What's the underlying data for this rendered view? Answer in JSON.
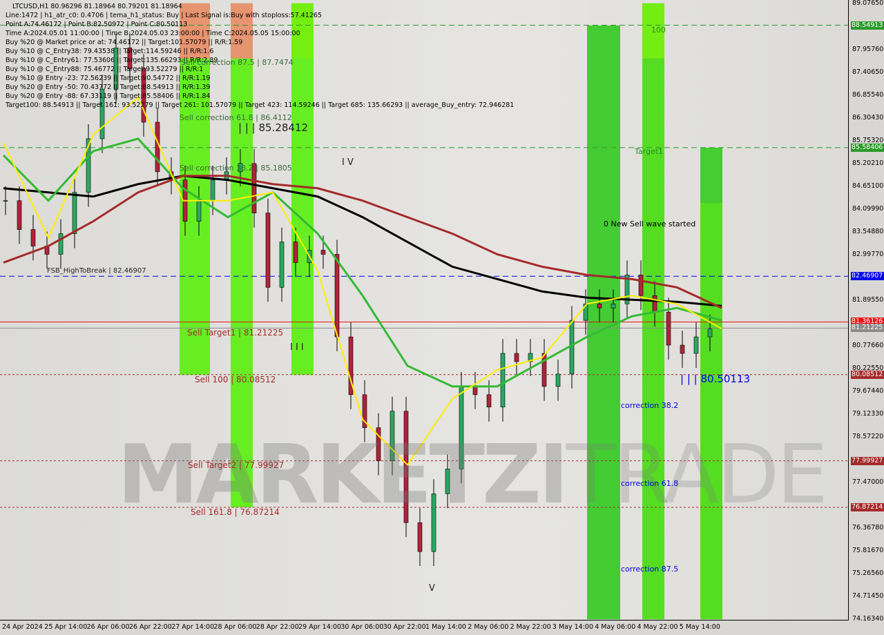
{
  "header": {
    "title": "LTCUSD,H1  80.96296 81.18964 80.79201 81.18964",
    "lines": [
      "Line:1472 | h1_atr_c0: 0.4706 | tema_h1_status: Buy | Last Signal is:Buy with stoploss:57.41265",
      "Point A:74.46172 | Point B:82.50972 | Point C:80.50113",
      "Time A:2024.05.01 11:00:00 | Time B:2024.05.03 23:00:00 | Time C:2024.05.05 15:00:00",
      "Buy %20 @ Market price or at: 74.46172 || Target:101.57079 || R/R:1.59",
      "Buy %10 @ C_Entry38: 79.43538 || Target:114.59246 || R/R:1.6",
      "Buy %10 @ C_Entry61: 77.53606 || Target:135.66293 || R/R:2.89",
      "Buy %10 @ C_Entry88: 75.46772 || Target:93.52279 || R/R:1",
      "Buy %10 @ Entry -23: 72.56239 || Target:90.54772 || R/R:1.19",
      "Buy %20 @ Entry -50: 70.43772 || Target:88.54913 || R/R:1.39",
      "Buy %20 @ Entry -88: 67.33119 || Target:85.58406 || R/R:1.84",
      "Target100: 88.54913 || Target 161: 93.52279 || Target 261: 101.57079 || Target 423: 114.59246 || Target 685: 135.66293 || average_Buy_entry: 72.946281"
    ]
  },
  "watermark": {
    "a": "MARKETZI",
    "b": "TRADE"
  },
  "chart_data": {
    "type": "candlestick",
    "ylim": [
      74.1634,
      89.0765
    ],
    "y_ticks": [
      "89.07650",
      "87.95760",
      "87.40650",
      "86.85540",
      "86.30430",
      "85.75320",
      "85.20210",
      "84.65100",
      "84.09990",
      "83.54880",
      "82.99770",
      "81.89550",
      "80.77660",
      "80.22550",
      "79.67440",
      "79.12330",
      "78.57220",
      "77.47000",
      "76.36780",
      "75.81670",
      "75.26560",
      "74.71450",
      "74.16340"
    ],
    "x_ticks": [
      "24 Apr 2024",
      "25 Apr 14:00",
      "26 Apr 06:00",
      "26 Apr 22:00",
      "27 Apr 14:00",
      "28 Apr 06:00",
      "28 Apr 22:00",
      "29 Apr 14:00",
      "30 Apr 06:00",
      "30 Apr 22:00",
      "1 May 14:00",
      "2 May 06:00",
      "2 May 22:00",
      "3 May 14:00",
      "4 May 06:00",
      "4 May 22:00",
      "5 May 14:00"
    ],
    "closes": [
      84.3,
      83.6,
      83.2,
      83.0,
      83.5,
      84.5,
      85.8,
      87.0,
      88.0,
      87.5,
      86.2,
      85.0,
      84.8,
      83.8,
      84.3,
      84.8,
      85.0,
      85.2,
      84.0,
      82.2,
      83.3,
      82.8,
      83.1,
      83.0,
      81.0,
      79.6,
      78.8,
      78.0,
      79.2,
      76.5,
      75.8,
      77.2,
      77.8,
      79.8,
      79.6,
      79.3,
      80.6,
      80.4,
      80.6,
      79.8,
      80.1,
      81.4,
      81.8,
      81.7,
      81.8,
      82.5,
      82.0,
      81.6,
      80.8,
      80.6,
      81.0,
      81.19
    ],
    "lines": [
      {
        "color": "#000000",
        "values": [
          84.6,
          84.5,
          84.4,
          84.7,
          84.9,
          84.8,
          84.6,
          84.4,
          83.9,
          83.3,
          82.7,
          82.4,
          82.1,
          81.95,
          81.9,
          81.85,
          81.75
        ]
      },
      {
        "color": "#a52a2a",
        "values": [
          82.8,
          83.2,
          83.8,
          84.5,
          84.9,
          84.9,
          84.7,
          84.6,
          84.3,
          83.9,
          83.5,
          83.0,
          82.7,
          82.5,
          82.4,
          82.2,
          81.7
        ]
      },
      {
        "color": "#33bb33",
        "values": [
          85.4,
          84.3,
          85.5,
          85.8,
          84.6,
          83.9,
          84.5,
          83.5,
          82.0,
          80.3,
          79.8,
          79.8,
          80.4,
          81.0,
          81.5,
          81.7,
          81.4
        ]
      },
      {
        "color": "#ffee00",
        "values": [
          85.7,
          83.4,
          85.9,
          86.8,
          84.3,
          84.3,
          84.5,
          82.6,
          79.0,
          77.9,
          79.5,
          80.2,
          80.5,
          81.8,
          82.0,
          81.8,
          81.2
        ]
      }
    ],
    "zones": [
      {
        "from": 12.6,
        "to": 14.8,
        "top": 89.08,
        "bottom": 80.08,
        "color": "#66ee22",
        "head": "#f58a7a"
      },
      {
        "from": 16.3,
        "to": 17.9,
        "top": 89.08,
        "bottom": 76.87,
        "color": "#66ee22",
        "head": "#f58a7a"
      },
      {
        "from": 20.7,
        "to": 22.3,
        "top": 89.08,
        "bottom": 80.08,
        "color": "#66ee22",
        "head": "#77ee11"
      },
      {
        "from": 42.1,
        "to": 44.5,
        "top": 88.54,
        "bottom": 74.16,
        "color": "#44cc33",
        "head": "#44cc33"
      },
      {
        "from": 46.1,
        "to": 47.7,
        "top": 89.08,
        "bottom": 74.16,
        "color": "#55dd22",
        "head": "#77ee11"
      },
      {
        "from": 50.3,
        "to": 51.9,
        "top": 85.58,
        "bottom": 74.16,
        "color": "#55dd22",
        "head": "#44cc33"
      }
    ],
    "levels": [
      {
        "price": 88.54913,
        "label": "88.54913",
        "color": "#2a9a2a",
        "style": "dash"
      },
      {
        "price": 85.58406,
        "label": "85.58406",
        "color": "#2a9a2a",
        "style": "dash"
      },
      {
        "price": 82.46907,
        "label": "82.46907",
        "color": "#0000ee",
        "style": "dash"
      },
      {
        "price": 81.36126,
        "label": "81.36126",
        "color": "#ee1111",
        "style": "solid"
      },
      {
        "price": 81.21225,
        "label": "81.21225",
        "color": "#8a8a8a",
        "style": "solid"
      },
      {
        "price": 80.08512,
        "label": "80.08512",
        "color": "#a52a2a",
        "style": "dot"
      },
      {
        "price": 77.99927,
        "label": "77.99927",
        "color": "#a52a2a",
        "style": "dot"
      },
      {
        "price": 76.87214,
        "label": "76.87214",
        "color": "#a52a2a",
        "style": "dot"
      }
    ],
    "annotations": [
      "Sell correction 87.5 | 87.7474",
      "Sell correction 61.8 | 86.4112",
      "| | | 85.28412",
      "Sell correction 38.2 | 85.1805",
      "FSB_HighToBreak | 82.46907",
      "Sell Target1 | 81.21225",
      "Sell 100 | 80.08512",
      "Sell Target2 | 77.99927",
      "Sell 161.8 | 76.87214",
      "0 New Sell wave started",
      "| | | 80.50113",
      "correction 38.2",
      "correction 61.8",
      "correction 87.5",
      "100",
      "Target1",
      "I V",
      "I I I",
      "V"
    ]
  }
}
